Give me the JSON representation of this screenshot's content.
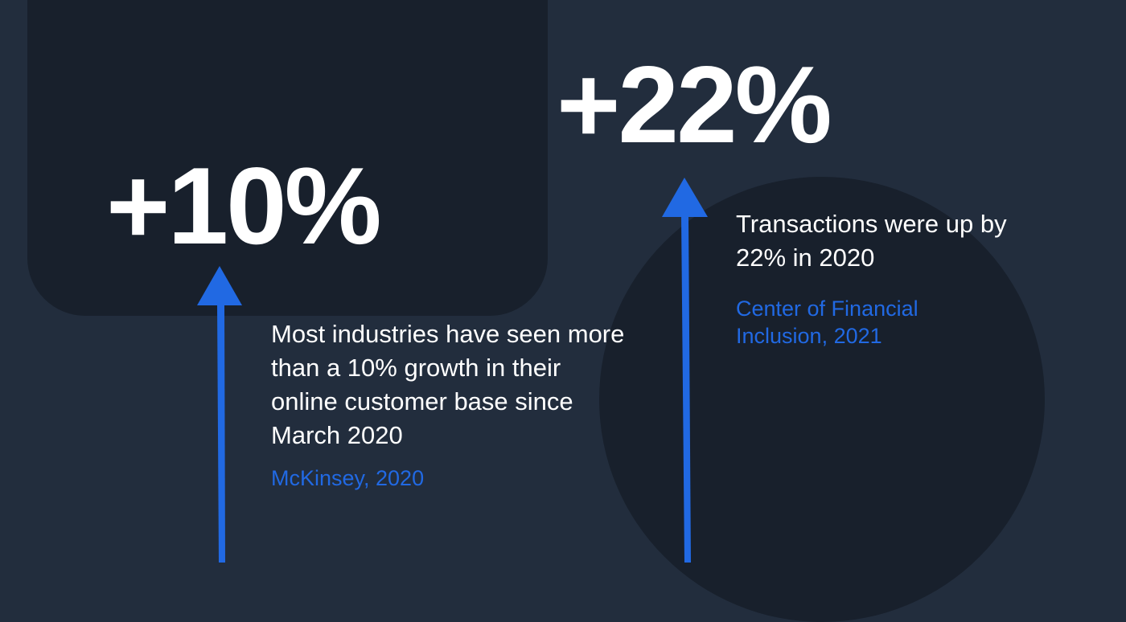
{
  "stats": [
    {
      "value": "+10%",
      "description": "Most industries have seen more than a 10% growth in their online customer base since March 2020",
      "source": "McKinsey, 2020"
    },
    {
      "value": "+22%",
      "description": "Transactions were up by 22% in 2020",
      "source": "Center of Financial Inclusion, 2021"
    }
  ],
  "colors": {
    "background": "#222d3d",
    "panel": "#18202c",
    "accent": "#2169e3",
    "text": "#ffffff"
  }
}
